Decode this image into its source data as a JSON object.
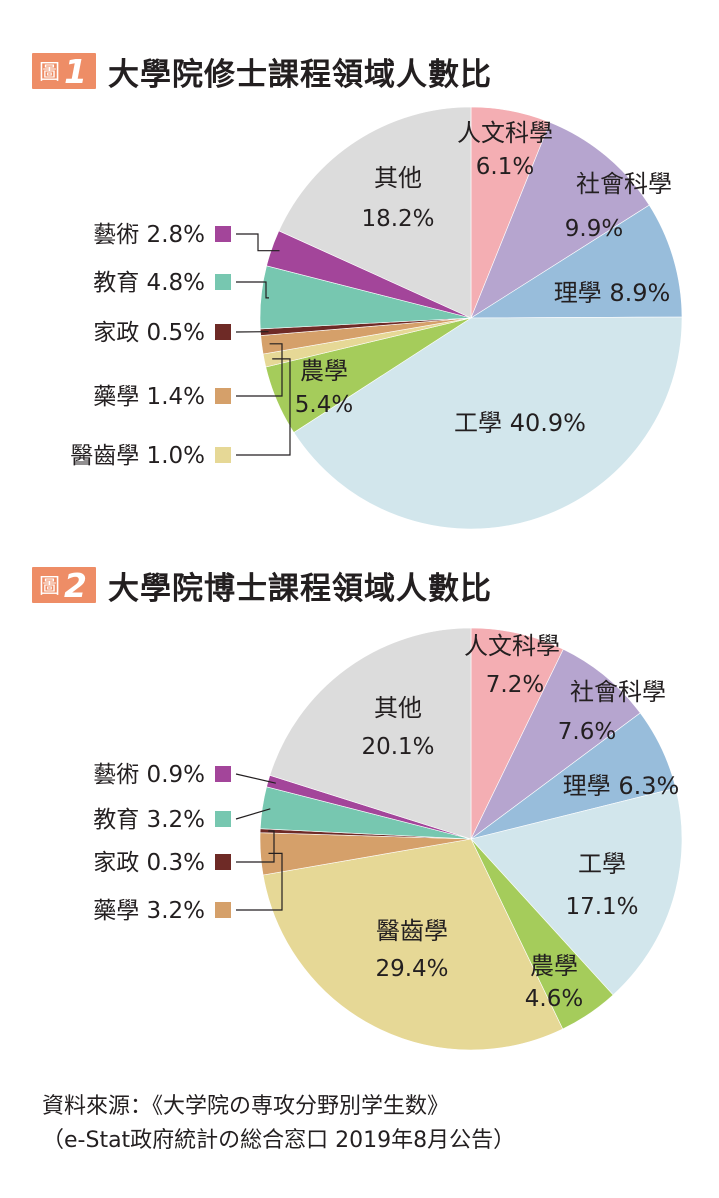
{
  "figures": [
    {
      "badge_prefix": "圖",
      "badge_number": "1",
      "title": "大學院修士課程領域人數比"
    },
    {
      "badge_prefix": "圖",
      "badge_number": "2",
      "title": "大學院博士課程領域人數比"
    }
  ],
  "source": {
    "line1": "資料來源：《大学院の専攻分野別学生数》",
    "line2": "（e-Stat政府統計の総合窓口 2019年8月公告）"
  },
  "chart_data": [
    {
      "type": "pie",
      "title": "大學院修士課程領域人數比",
      "start": "12 o'clock, clockwise",
      "slices": [
        {
          "label": "人文科學",
          "value": 6.1,
          "display": "6.1%",
          "color": "#f4aeb3"
        },
        {
          "label": "社會科學",
          "value": 9.9,
          "display": "9.9%",
          "color": "#b6a5cf"
        },
        {
          "label": "理學",
          "value": 8.9,
          "display": "8.9%",
          "color": "#98bddb"
        },
        {
          "label": "工學",
          "value": 40.9,
          "display": "40.9%",
          "color": "#d2e6ec"
        },
        {
          "label": "農學",
          "value": 5.4,
          "display": "5.4%",
          "color": "#a5cc5b"
        },
        {
          "label": "醫齒學",
          "value": 1.0,
          "display": "1.0%",
          "color": "#e6d896"
        },
        {
          "label": "藥學",
          "value": 1.4,
          "display": "1.4%",
          "color": "#d5a06a"
        },
        {
          "label": "家政",
          "value": 0.5,
          "display": "0.5%",
          "color": "#6e2a26"
        },
        {
          "label": "教育",
          "value": 4.8,
          "display": "4.8%",
          "color": "#77c7b0"
        },
        {
          "label": "藝術",
          "value": 2.8,
          "display": "2.8%",
          "color": "#a3459a"
        },
        {
          "label": "其他",
          "value": 18.2,
          "display": "18.2%",
          "color": "#dcdcdc"
        }
      ]
    },
    {
      "type": "pie",
      "title": "大學院博士課程領域人數比",
      "start": "12 o'clock, clockwise",
      "slices": [
        {
          "label": "人文科學",
          "value": 7.2,
          "display": "7.2%",
          "color": "#f4aeb3"
        },
        {
          "label": "社會科學",
          "value": 7.6,
          "display": "7.6%",
          "color": "#b6a5cf"
        },
        {
          "label": "理學",
          "value": 6.3,
          "display": "6.3%",
          "color": "#98bddb"
        },
        {
          "label": "工學",
          "value": 17.1,
          "display": "17.1%",
          "color": "#d2e6ec"
        },
        {
          "label": "農學",
          "value": 4.6,
          "display": "4.6%",
          "color": "#a5cc5b"
        },
        {
          "label": "醫齒學",
          "value": 29.4,
          "display": "29.4%",
          "color": "#e6d896"
        },
        {
          "label": "藥學",
          "value": 3.2,
          "display": "3.2%",
          "color": "#d5a06a"
        },
        {
          "label": "家政",
          "value": 0.3,
          "display": "0.3%",
          "color": "#6e2a26"
        },
        {
          "label": "教育",
          "value": 3.2,
          "display": "3.2%",
          "color": "#77c7b0"
        },
        {
          "label": "藝術",
          "value": 0.9,
          "display": "0.9%",
          "color": "#a3459a"
        },
        {
          "label": "其他",
          "value": 20.1,
          "display": "20.1%",
          "color": "#dcdcdc"
        }
      ]
    }
  ]
}
